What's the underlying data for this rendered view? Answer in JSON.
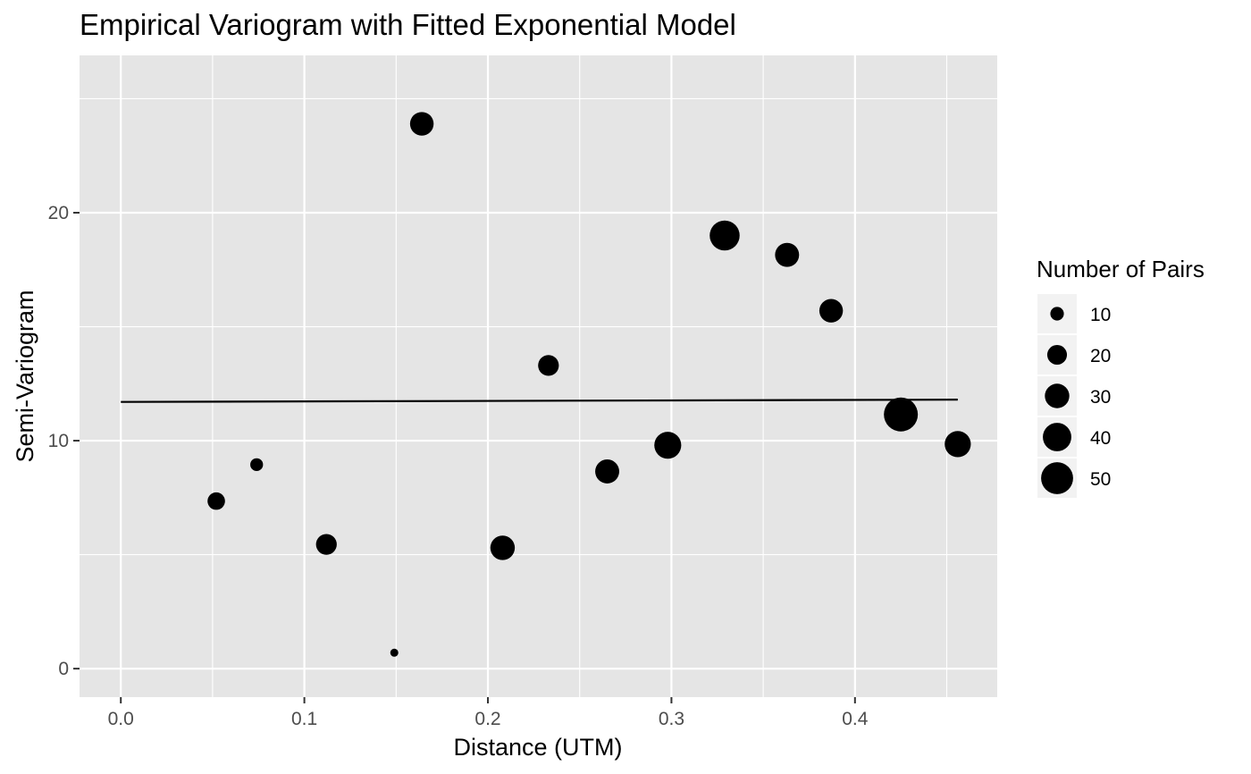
{
  "chart_data": {
    "type": "scatter",
    "title": "Empirical Variogram with Fitted Exponential Model",
    "xlabel": "Distance (UTM)",
    "ylabel": "Semi-Variogram",
    "xlim": [
      -0.0225,
      0.4775
    ],
    "ylim": [
      -1.25,
      26.9
    ],
    "x_ticks": [
      0.0,
      0.1,
      0.2,
      0.3,
      0.4
    ],
    "x_tick_labels": [
      "0.0",
      "0.1",
      "0.2",
      "0.3",
      "0.4"
    ],
    "y_ticks": [
      0,
      10,
      20
    ],
    "y_tick_labels": [
      "0",
      "10",
      "20"
    ],
    "grid": true,
    "legend_position": "right",
    "points": {
      "x": [
        0.052,
        0.074,
        0.112,
        0.149,
        0.164,
        0.208,
        0.233,
        0.265,
        0.298,
        0.329,
        0.363,
        0.387,
        0.425,
        0.456
      ],
      "y": [
        7.35,
        8.95,
        5.45,
        0.7,
        23.9,
        5.3,
        13.3,
        8.65,
        9.8,
        19.0,
        18.15,
        15.7,
        11.15,
        9.85
      ],
      "n_pairs": [
        16,
        9,
        22,
        4,
        28,
        30,
        22,
        29,
        36,
        44,
        29,
        28,
        56,
        34
      ]
    },
    "fitted_model": {
      "name": "Exponential",
      "x": [
        0.0,
        0.456
      ],
      "y": [
        11.7,
        11.8
      ]
    },
    "legend": {
      "title": "Number of Pairs",
      "entries": [
        {
          "label": "10",
          "value": 10
        },
        {
          "label": "20",
          "value": 20
        },
        {
          "label": "30",
          "value": 30
        },
        {
          "label": "40",
          "value": 40
        },
        {
          "label": "50",
          "value": 50
        }
      ]
    },
    "colors": {
      "panel": "#e5e5e5",
      "grid": "#ffffff",
      "points": "#000000",
      "line": "#000000",
      "tick_text": "#4d4d4d",
      "axis_ticks": "#333333"
    }
  }
}
